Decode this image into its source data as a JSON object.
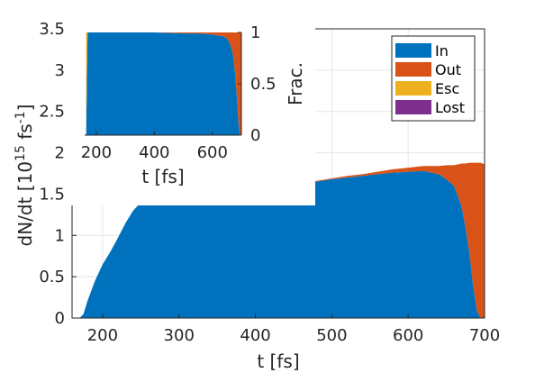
{
  "chart_data": [
    {
      "type": "area",
      "stacked": true,
      "xlabel": "t [fs]",
      "ylabel_main": "dN/dt [10",
      "ylabel_exp": "15",
      "ylabel_unit": " fs",
      "ylabel_unit_exp": "-1",
      "ylabel_close": "]",
      "xlim": [
        160,
        700
      ],
      "ylim": [
        0,
        3.5
      ],
      "xticks": [
        200,
        300,
        400,
        500,
        600,
        700
      ],
      "xtick_labels": [
        "200",
        "300",
        "400",
        "500",
        "600",
        "700"
      ],
      "yticks": [
        0,
        0.5,
        1,
        1.5,
        2,
        2.5,
        3,
        3.5
      ],
      "ytick_labels": [
        "0",
        "0.5",
        "1",
        "1.5",
        "2",
        "2.5",
        "3",
        "3.5"
      ],
      "grid": true,
      "legend_position": "top-right",
      "x": [
        170,
        175,
        180,
        190,
        200,
        210,
        220,
        230,
        240,
        250,
        260,
        270,
        280,
        290,
        300,
        320,
        340,
        360,
        380,
        400,
        420,
        440,
        460,
        480,
        500,
        520,
        540,
        560,
        580,
        600,
        620,
        640,
        650,
        660,
        670,
        675,
        680,
        685,
        690,
        695,
        700
      ],
      "series": [
        {
          "name": "In",
          "color": "#0072BD",
          "values": [
            0,
            0.05,
            0.2,
            0.45,
            0.65,
            0.8,
            0.97,
            1.15,
            1.3,
            1.4,
            1.46,
            1.49,
            1.5,
            1.51,
            1.52,
            1.52,
            1.53,
            1.54,
            1.55,
            1.56,
            1.58,
            1.6,
            1.63,
            1.65,
            1.68,
            1.7,
            1.72,
            1.74,
            1.76,
            1.77,
            1.78,
            1.74,
            1.68,
            1.6,
            1.35,
            1.1,
            0.8,
            0.4,
            0.08,
            0,
            0
          ]
        },
        {
          "name": "Out",
          "color": "#D95319",
          "values": [
            0,
            0,
            0,
            0,
            0,
            0,
            0,
            0,
            0,
            0,
            0,
            0,
            0,
            0,
            0.01,
            0.01,
            0.01,
            0.01,
            0.01,
            0.01,
            0.01,
            0.01,
            0.01,
            0.01,
            0.01,
            0.02,
            0.02,
            0.03,
            0.04,
            0.05,
            0.06,
            0.1,
            0.17,
            0.25,
            0.52,
            0.77,
            1.08,
            1.48,
            1.8,
            1.88,
            1.86
          ]
        },
        {
          "name": "Esc",
          "color": "#EDB120",
          "values": [
            0,
            0,
            0,
            0,
            0,
            0,
            0,
            0,
            0,
            0,
            0,
            0,
            0,
            0,
            0,
            0,
            0,
            0,
            0,
            0,
            0,
            0,
            0,
            0,
            0,
            0,
            0,
            0,
            0,
            0,
            0,
            0,
            0,
            0,
            0,
            0,
            0,
            0,
            0,
            0,
            0
          ]
        },
        {
          "name": "Lost",
          "color": "#7E2F8E",
          "values": [
            0,
            0,
            0,
            0,
            0,
            0,
            0,
            0,
            0,
            0,
            0,
            0,
            0,
            0,
            0,
            0,
            0,
            0,
            0,
            0,
            0,
            0,
            0,
            0,
            0,
            0,
            0,
            0,
            0,
            0,
            0,
            0,
            0,
            0,
            0,
            0,
            0,
            0,
            0,
            0,
            0
          ]
        }
      ],
      "legend": [
        "In",
        "Out",
        "Esc",
        "Lost"
      ]
    },
    {
      "type": "area",
      "stacked": true,
      "inset": true,
      "xlabel": "t [fs]",
      "ylabel": "Frac.",
      "ylabel_side": "right",
      "xlim": [
        160,
        700
      ],
      "ylim": [
        0,
        1
      ],
      "xticks": [
        200,
        400,
        600
      ],
      "xtick_labels": [
        "200",
        "400",
        "600"
      ],
      "yticks": [
        0,
        0.5,
        1
      ],
      "ytick_labels": [
        "0",
        "0.5",
        "1"
      ],
      "grid": false,
      "x": [
        165,
        170,
        175,
        180,
        200,
        300,
        400,
        500,
        550,
        600,
        620,
        640,
        650,
        660,
        670,
        675,
        680,
        685,
        690,
        695,
        700
      ],
      "series": [
        {
          "name": "In",
          "color": "#0072BD",
          "values": [
            0,
            1,
            1,
            1,
            1,
            1,
            1,
            0.99,
            0.99,
            0.98,
            0.97,
            0.96,
            0.94,
            0.9,
            0.8,
            0.7,
            0.55,
            0.35,
            0.12,
            0,
            0
          ]
        },
        {
          "name": "Out",
          "color": "#D95319",
          "values": [
            0,
            0,
            0,
            0,
            0,
            0,
            0,
            0.01,
            0.01,
            0.02,
            0.03,
            0.04,
            0.06,
            0.1,
            0.2,
            0.3,
            0.45,
            0.65,
            0.88,
            1,
            1
          ]
        },
        {
          "name": "Esc",
          "color": "#EDB120",
          "values": [
            1,
            0,
            0,
            0,
            0,
            0,
            0,
            0,
            0,
            0,
            0,
            0,
            0,
            0,
            0,
            0,
            0,
            0,
            0,
            0,
            0
          ]
        },
        {
          "name": "Lost",
          "color": "#7E2F8E",
          "values": [
            0,
            0,
            0,
            0,
            0,
            0,
            0,
            0,
            0,
            0,
            0,
            0,
            0,
            0,
            0,
            0,
            0,
            0,
            0,
            0,
            0
          ]
        }
      ]
    }
  ]
}
